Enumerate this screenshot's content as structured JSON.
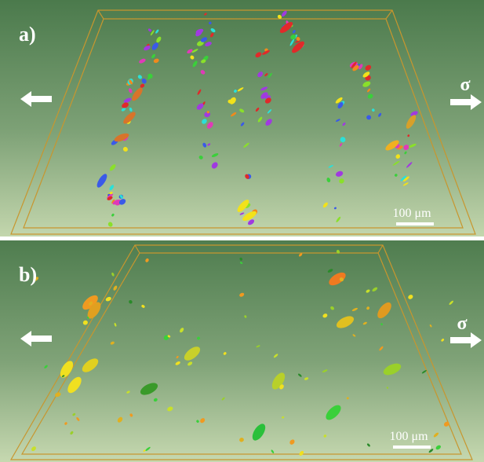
{
  "panels": [
    {
      "label": "a)",
      "sigma": "σ",
      "scale_bar": "100 μm"
    },
    {
      "label": "b)",
      "sigma": "σ",
      "scale_bar": "100 μm"
    }
  ]
}
